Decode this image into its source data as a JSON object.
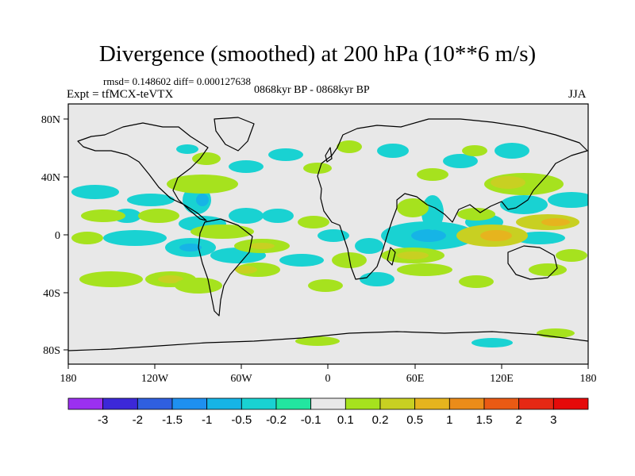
{
  "title": "Divergence (smoothed) at 200 hPa (10**6 m/s)",
  "stats": "rmsd= 0.148602  diff= 0.000127638",
  "experiment": "Expt = tfMCX-teVTX",
  "period": "0868kyr BP - 0868kyr BP",
  "season": "JJA",
  "axes": {
    "lon_ticks": [
      "180",
      "120W",
      "60W",
      "0",
      "60E",
      "120E",
      "180"
    ],
    "lat_ticks": [
      "80N",
      "40N",
      "0",
      "40S",
      "80S"
    ]
  },
  "colorbar": {
    "labels": [
      "-3",
      "-2",
      "-1.5",
      "-1",
      "-0.5",
      "-0.2",
      "-0.1",
      "0.1",
      "0.2",
      "0.5",
      "1",
      "1.5",
      "2",
      "3"
    ],
    "colors": [
      "#9b30f0",
      "#3c28d8",
      "#2f5fe0",
      "#1e90f0",
      "#16b4e6",
      "#19d2d2",
      "#22e6a0",
      "#e8e8e8",
      "#a6e21e",
      "#c8d022",
      "#e6b41e",
      "#eb8c19",
      "#ea5a14",
      "#e62814",
      "#e60a0a"
    ]
  },
  "map": {
    "background_color": "#e8e8e8",
    "coast_color": "#000000"
  }
}
